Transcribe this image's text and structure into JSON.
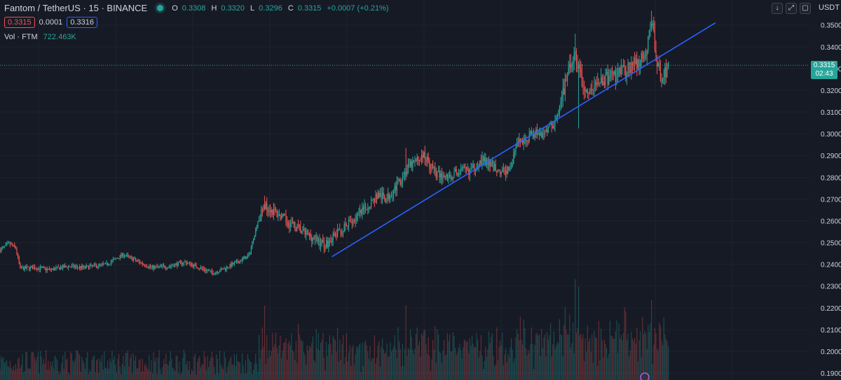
{
  "header": {
    "symbol_title": "Fantom / TetherUS · 15 · BINANCE",
    "ohlc": [
      {
        "label": "O",
        "value": "0.3308"
      },
      {
        "label": "H",
        "value": "0.3320"
      },
      {
        "label": "L",
        "value": "0.3296"
      },
      {
        "label": "C",
        "value": "0.3315"
      }
    ],
    "change": "+0.0007 (+0.21%)",
    "sell_price": "0.3315",
    "spread": "0.0001",
    "buy_price": "0.3316",
    "volume_label": "Vol · FTM",
    "volume_value": "722.463K"
  },
  "toolbar": {
    "currency": "USDT",
    "down_glyph": "↓",
    "expand_glyph": "⤢",
    "camera_glyph": "▢"
  },
  "last_price": {
    "price": "0.3315",
    "countdown": "02:43"
  },
  "colors": {
    "up": "#26a69a",
    "down": "#ef5350",
    "trendline": "#2962ff",
    "background": "#161a25"
  },
  "chart_data": {
    "type": "candlestick",
    "title": "Fantom / TetherUS · 15 · BINANCE",
    "ylim": [
      0.1868,
      0.3615
    ],
    "y_ticks": [
      "0.3500",
      "0.3400",
      "0.3300",
      "0.3200",
      "0.3100",
      "0.3000",
      "0.2900",
      "0.2800",
      "0.2700",
      "0.2600",
      "0.2500",
      "0.2400",
      "0.2300",
      "0.2200",
      "0.2100",
      "0.2000",
      "0.1900"
    ],
    "y_tick_values": [
      0.35,
      0.34,
      0.33,
      0.32,
      0.31,
      0.3,
      0.29,
      0.28,
      0.27,
      0.26,
      0.25,
      0.24,
      0.23,
      0.22,
      0.21,
      0.2,
      0.19
    ],
    "close_anchors": [
      [
        0,
        0.2465
      ],
      [
        8,
        0.2495
      ],
      [
        14,
        0.2475
      ],
      [
        18,
        0.238
      ],
      [
        30,
        0.2385
      ],
      [
        45,
        0.2375
      ],
      [
        60,
        0.239
      ],
      [
        75,
        0.2385
      ],
      [
        95,
        0.24
      ],
      [
        110,
        0.2445
      ],
      [
        120,
        0.242
      ],
      [
        135,
        0.2385
      ],
      [
        150,
        0.239
      ],
      [
        165,
        0.241
      ],
      [
        180,
        0.238
      ],
      [
        190,
        0.236
      ],
      [
        200,
        0.238
      ],
      [
        212,
        0.241
      ],
      [
        222,
        0.244
      ],
      [
        230,
        0.26
      ],
      [
        236,
        0.267
      ],
      [
        242,
        0.265
      ],
      [
        255,
        0.26
      ],
      [
        270,
        0.255
      ],
      [
        280,
        0.252
      ],
      [
        290,
        0.249
      ],
      [
        296,
        0.252
      ],
      [
        310,
        0.258
      ],
      [
        325,
        0.265
      ],
      [
        337,
        0.272
      ],
      [
        345,
        0.27
      ],
      [
        356,
        0.278
      ],
      [
        365,
        0.285
      ],
      [
        378,
        0.29
      ],
      [
        390,
        0.281
      ],
      [
        400,
        0.28
      ],
      [
        410,
        0.283
      ],
      [
        420,
        0.283
      ],
      [
        430,
        0.288
      ],
      [
        440,
        0.285
      ],
      [
        447,
        0.282
      ],
      [
        455,
        0.284
      ],
      [
        462,
        0.296
      ],
      [
        470,
        0.298
      ],
      [
        478,
        0.301
      ],
      [
        485,
        0.3
      ],
      [
        492,
        0.304
      ],
      [
        498,
        0.308
      ],
      [
        506,
        0.328
      ],
      [
        513,
        0.336
      ],
      [
        519,
        0.323
      ],
      [
        525,
        0.318
      ],
      [
        533,
        0.324
      ],
      [
        540,
        0.325
      ],
      [
        550,
        0.327
      ],
      [
        560,
        0.33
      ],
      [
        568,
        0.332
      ],
      [
        576,
        0.336
      ],
      [
        581,
        0.353
      ],
      [
        586,
        0.333
      ],
      [
        591,
        0.325
      ],
      [
        596,
        0.3315
      ]
    ],
    "spikes": [
      {
        "index": 236,
        "high": 0.2715
      },
      {
        "index": 362,
        "high": 0.2935
      },
      {
        "index": 513,
        "high": 0.346
      },
      {
        "index": 516,
        "low": 0.3025
      },
      {
        "index": 581,
        "high": 0.3565
      }
    ],
    "trendline": [
      [
        0.2435,
        296
      ],
      [
        0.351,
        638
      ]
    ],
    "last_price": 0.3315
  }
}
